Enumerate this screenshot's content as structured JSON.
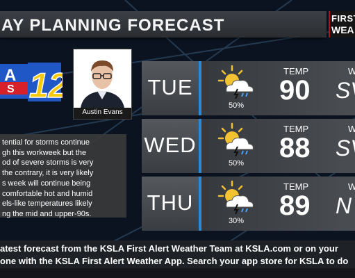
{
  "header": {
    "title": "AY PLANNING FORECAST",
    "badge_line1": "FIRST",
    "badge_line2": "WEA"
  },
  "logo": {
    "text": "12",
    "left_text": "A",
    "sub_text": "S"
  },
  "presenter": {
    "name": "Austin Evans"
  },
  "summary": {
    "text": "tential for storms continue\ngh this workweek but the\nod of severe storms is very\nthe contrary, it is very likely\ns week will continue being\ncomfortable hot and humid\nels-like temperatures likely\nng the mid and upper-90s."
  },
  "forecast": [
    {
      "day": "TUE",
      "icon": "sun-cloud-storm-icon",
      "pop": "50%",
      "temp_label": "TEMP",
      "temp": "90",
      "wind_label": "W",
      "wind": "SV"
    },
    {
      "day": "WED",
      "icon": "sun-cloud-storm-icon",
      "pop": "50%",
      "temp_label": "TEMP",
      "temp": "88",
      "wind_label": "W",
      "wind": "SV"
    },
    {
      "day": "THU",
      "icon": "sun-cloud-storm-icon",
      "pop": "30%",
      "temp_label": "TEMP",
      "temp": "89",
      "wind_label": "W",
      "wind": "N"
    }
  ],
  "ticker": {
    "line1": "atest forecast from the KSLA First Alert Weather Team at KSLA.com or on your",
    "line2": "one with the KSLA First Alert Weather App. Search your app store for KSLA to do"
  },
  "colors": {
    "accent": "#2a8ad8",
    "logo_blue": "#1f57c7",
    "logo_red": "#d8202a",
    "sun": "#f2c230"
  }
}
